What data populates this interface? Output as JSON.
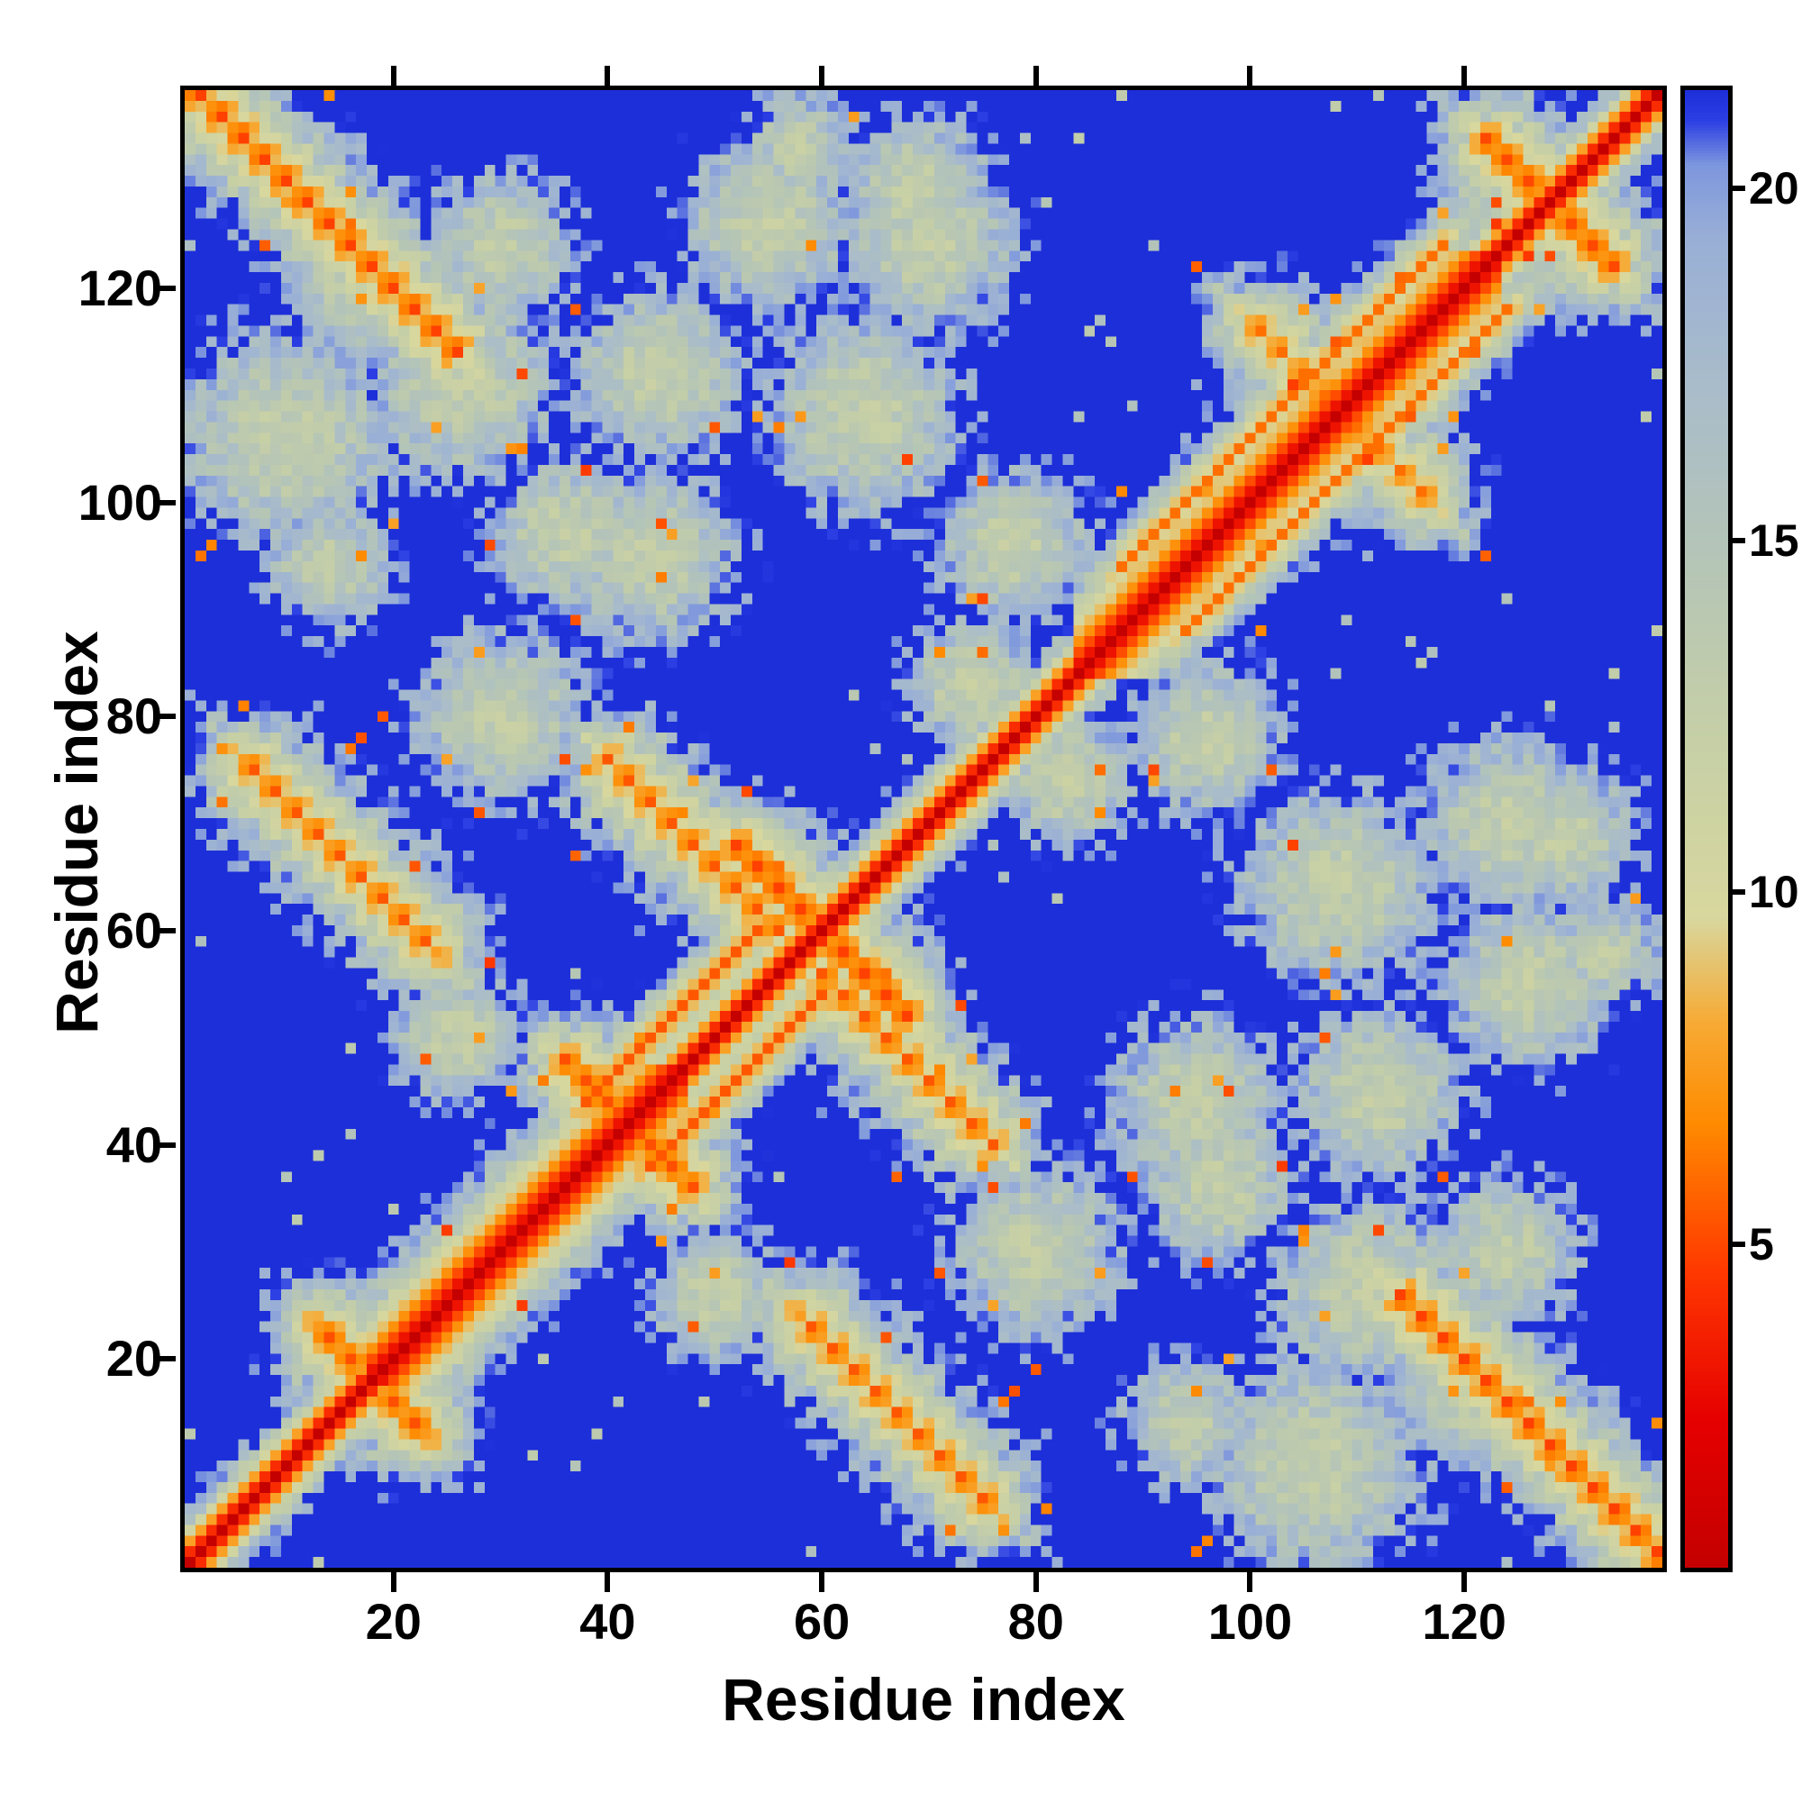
{
  "chart_data": {
    "type": "heatmap",
    "title": "",
    "xlabel": "Residue index",
    "ylabel": "Residue index",
    "description": "Symmetric residue-residue distance matrix (contact map) of a 138-residue protein. Red = short distances along the main diagonal, orange anti-diagonal streaks = antiparallel sheet/hairpin contacts, pale green patches = mid-range contacts (~10-15), blue = distances beyond the colorbar maximum.",
    "n_residues": 138,
    "x_range": [
      1,
      138
    ],
    "y_range": [
      1,
      138
    ],
    "x_ticks": [
      20,
      40,
      60,
      80,
      100,
      120
    ],
    "y_ticks": [
      20,
      40,
      60,
      80,
      100,
      120
    ],
    "grid": false,
    "legend_position": "none",
    "colorbar": {
      "vmin": 0.4,
      "vmax": 21.4,
      "ticks": [
        5,
        10,
        15,
        20
      ],
      "position": "right"
    },
    "colormap_stops": [
      [
        0.0,
        "#c40000"
      ],
      [
        0.1,
        "#e60000"
      ],
      [
        0.2,
        "#ff3800"
      ],
      [
        0.3,
        "#ff8a00"
      ],
      [
        0.37,
        "#f6ab36"
      ],
      [
        0.44,
        "#d8d79e"
      ],
      [
        0.56,
        "#c6cfa6"
      ],
      [
        0.68,
        "#b5c5b6"
      ],
      [
        0.8,
        "#a9bcca"
      ],
      [
        0.9,
        "#99afd6"
      ],
      [
        0.95,
        "#7e97dd"
      ],
      [
        0.98,
        "#2c3fe4"
      ],
      [
        1.0,
        "#1d2fd9"
      ]
    ],
    "matrix_model": {
      "background_value": 36,
      "chain": {
        "diag_value": 0.4,
        "intercept": 0.5,
        "slope": 3.6
      },
      "helices": [
        {
          "start": 18,
          "end": 47,
          "intercept": 1.3,
          "slope": 1.9
        },
        {
          "start": 84,
          "end": 123,
          "intercept": 1.3,
          "slope": 1.9
        }
      ],
      "parallel_contacts": [
        {
          "start": 38,
          "end": 54,
          "offset": 6,
          "depth": 5.4
        },
        {
          "start": 88,
          "end": 118,
          "offset": 6,
          "depth": 6.0
        }
      ],
      "antiparallel_contacts": [
        {
          "cx": 12,
          "cy": 128,
          "half_length": 14,
          "depth": 4.8
        },
        {
          "cx": 15,
          "cy": 67,
          "half_length": 9,
          "depth": 5.4
        },
        {
          "cx": 48,
          "cy": 68,
          "half_length": 8,
          "depth": 5.4
        },
        {
          "cx": 60,
          "cy": 60,
          "half_length": 8,
          "depth": 4.8
        },
        {
          "cx": 42,
          "cy": 42,
          "half_length": 6,
          "depth": 5.2
        },
        {
          "cx": 18,
          "cy": 18,
          "half_length": 5,
          "depth": 5.2
        },
        {
          "cx": 128,
          "cy": 128,
          "half_length": 6,
          "depth": 5.0
        },
        {
          "cx": 105,
          "cy": 112,
          "half_length": 5,
          "depth": 6.0
        }
      ],
      "contact_clusters": [
        {
          "cx": 10,
          "cy": 106,
          "radius": 10,
          "value": 12.8
        },
        {
          "cx": 26,
          "cy": 111,
          "radius": 9,
          "value": 12.8
        },
        {
          "cx": 17,
          "cy": 121,
          "radius": 7,
          "value": 12.6
        },
        {
          "cx": 44,
          "cy": 95,
          "radius": 8,
          "value": 12.8
        },
        {
          "cx": 30,
          "cy": 80,
          "radius": 8,
          "value": 12.8
        },
        {
          "cx": 55,
          "cy": 126,
          "radius": 8,
          "value": 12.8
        },
        {
          "cx": 69,
          "cy": 129,
          "radius": 7,
          "value": 12.8
        },
        {
          "cx": 63,
          "cy": 108,
          "radius": 7,
          "value": 13.0
        },
        {
          "cx": 78,
          "cy": 96,
          "radius": 7,
          "value": 12.6
        },
        {
          "cx": 108,
          "cy": 64,
          "radius": 9,
          "value": 12.8
        },
        {
          "cx": 124,
          "cy": 70,
          "radius": 8,
          "value": 12.8
        },
        {
          "cx": 112,
          "cy": 45,
          "radius": 8,
          "value": 12.8
        },
        {
          "cx": 97,
          "cy": 36,
          "radius": 7,
          "value": 12.8
        },
        {
          "cx": 83,
          "cy": 74,
          "radius": 6,
          "value": 12.4
        },
        {
          "cx": 124,
          "cy": 30,
          "radius": 7,
          "value": 13.0
        },
        {
          "cx": 94,
          "cy": 14,
          "radius": 6,
          "value": 13.2
        },
        {
          "cx": 133,
          "cy": 58,
          "radius": 5,
          "value": 13.0
        },
        {
          "cx": 26,
          "cy": 50,
          "radius": 6,
          "value": 12.8
        }
      ],
      "noise": {
        "amplitude": 0.65,
        "hot_spot_rate": 0.009,
        "far_dot_rate": 0.006
      }
    }
  }
}
